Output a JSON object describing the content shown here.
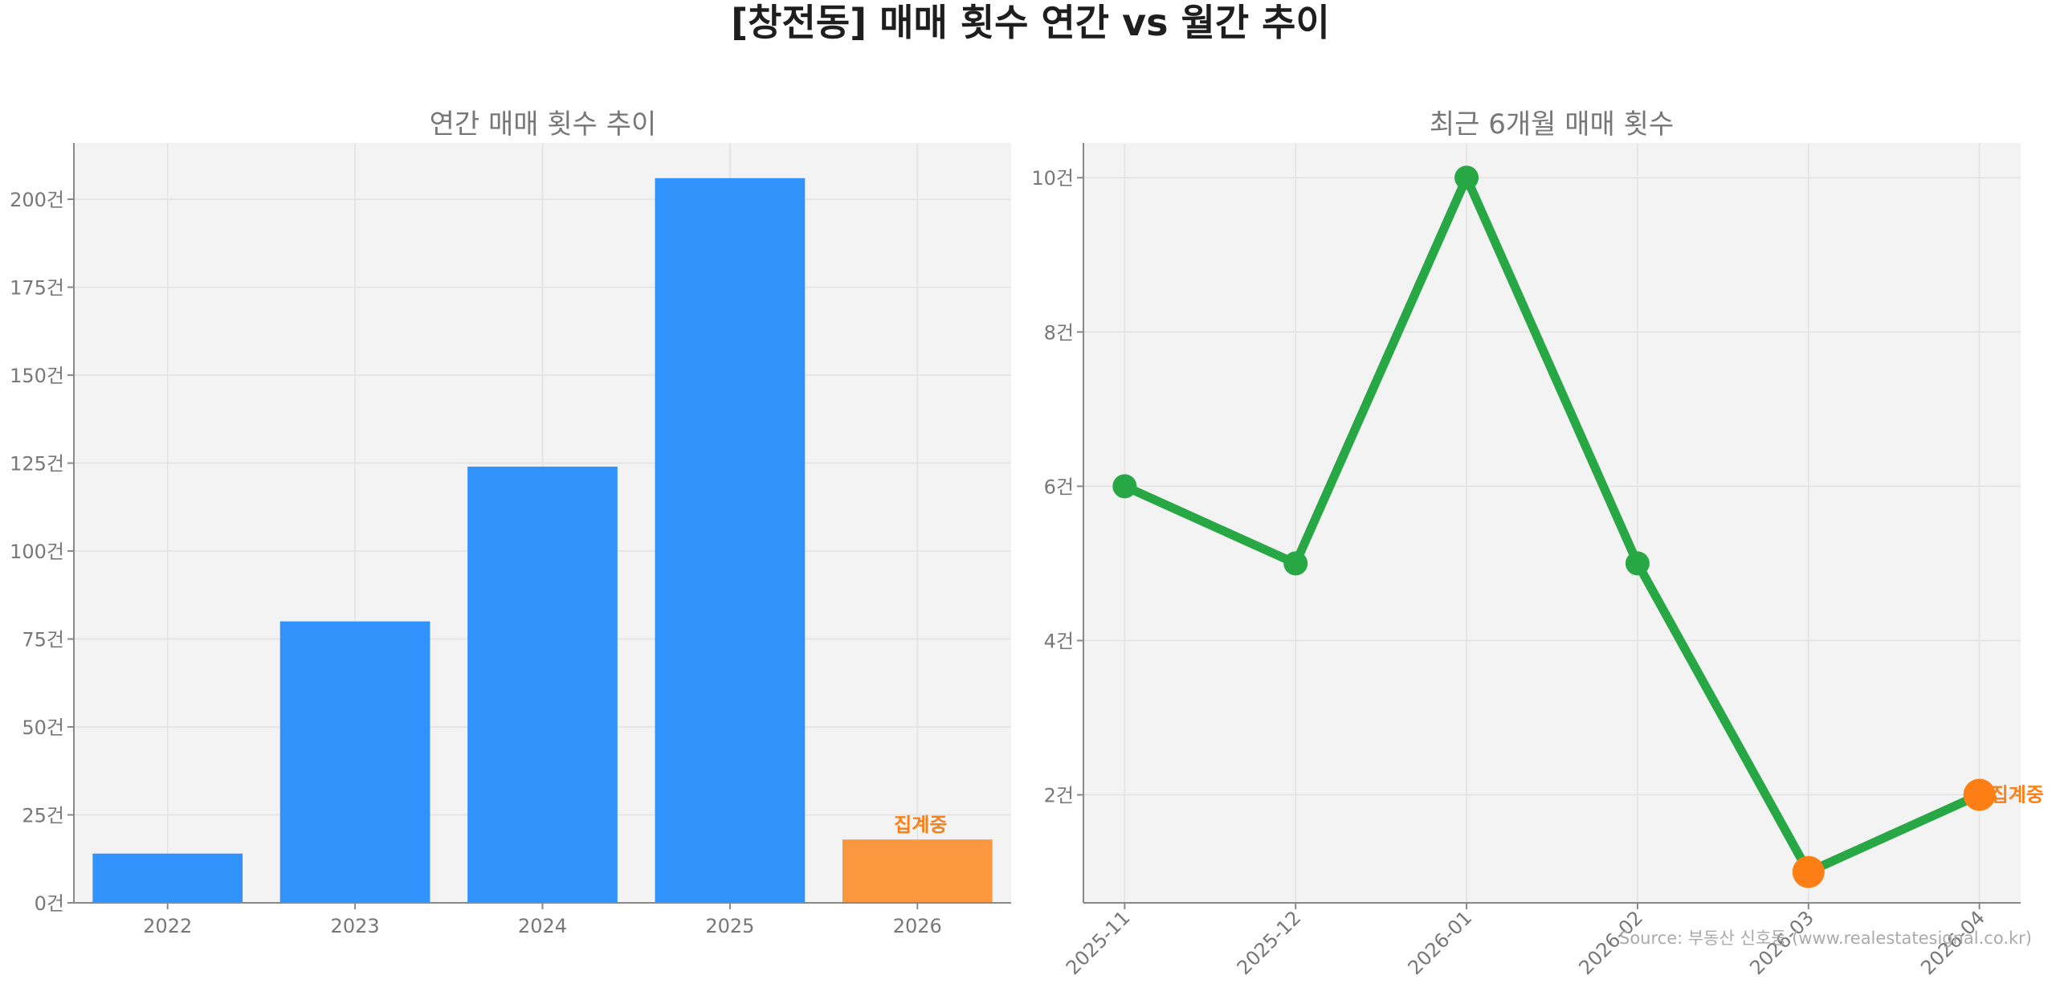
{
  "title": "[창전동] 매매 횟수 연간 vs 월간 추이",
  "source": "Source: 부동산 신호등 (www.realestatesignal.co.kr)",
  "chart_data": [
    {
      "type": "bar",
      "title": "연간 매매 횟수 추이",
      "categories": [
        "2022",
        "2023",
        "2024",
        "2025",
        "2026"
      ],
      "values": [
        14,
        80,
        124,
        206,
        18
      ],
      "y_ticks": [
        0,
        25,
        50,
        75,
        100,
        125,
        150,
        175,
        200
      ],
      "y_tick_suffix": "건",
      "ylim": [
        0,
        216
      ],
      "grid": true,
      "colors": {
        "bar": "#3192fb",
        "highlight": "#fb983f",
        "background": "#f3f3f3"
      },
      "highlight_index": 4,
      "annotation": {
        "category": "2026",
        "text": "집계중"
      }
    },
    {
      "type": "line",
      "title": "최근 6개월 매매 횟수",
      "categories": [
        "2025-11",
        "2025-12",
        "2026-01",
        "2026-02",
        "2026-03",
        "2026-04"
      ],
      "values": [
        6,
        5,
        10,
        5,
        1,
        2
      ],
      "y_ticks": [
        2,
        4,
        6,
        8,
        10
      ],
      "y_tick_suffix": "건",
      "ylim": [
        0.6,
        10.45
      ],
      "grid": true,
      "colors": {
        "line": "#28a745",
        "highlight": "#fd7e14",
        "background": "#f3f3f3"
      },
      "highlight_indices": [
        4,
        5
      ],
      "annotation": {
        "category": "2026-04",
        "text": "집계중"
      }
    }
  ]
}
